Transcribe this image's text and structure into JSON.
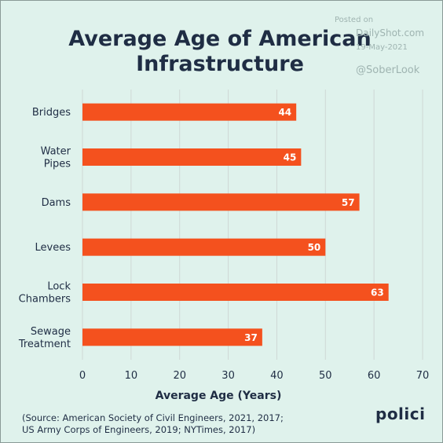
{
  "title_line1": "Average Age of American",
  "title_line2": "Infrastructure",
  "watermark": {
    "posted": "Posted on",
    "site": "DailyShot.com",
    "date": "19-May-2021",
    "handle": "@SoberLook"
  },
  "source_line1": "(Source: American Society of Civil Engineers, 2021, 2017;",
  "source_line2": "US Army Corps of Engineers, 2019; NYTimes, 2017)",
  "brand": "polici",
  "colors": {
    "bar": "#f4511e",
    "background": "#dff2ec",
    "text": "#1f2d44",
    "grid": "#cfd8d5"
  },
  "chart_data": {
    "type": "bar",
    "orientation": "horizontal",
    "title": "Average Age of American Infrastructure",
    "xlabel": "Average Age (Years)",
    "ylabel": "",
    "categories": [
      [
        "Bridges"
      ],
      [
        "Water",
        "Pipes"
      ],
      [
        "Dams"
      ],
      [
        "Levees"
      ],
      [
        "Lock",
        "Chambers"
      ],
      [
        "Sewage",
        "Treatment"
      ]
    ],
    "values": [
      44,
      45,
      57,
      50,
      63,
      37
    ],
    "data_labels": [
      "44",
      "45",
      "57",
      "50",
      "63",
      "37"
    ],
    "xlim": [
      0,
      70
    ],
    "xticks": [
      0,
      10,
      20,
      30,
      40,
      50,
      60,
      70
    ],
    "grid": true,
    "legend": "none"
  }
}
